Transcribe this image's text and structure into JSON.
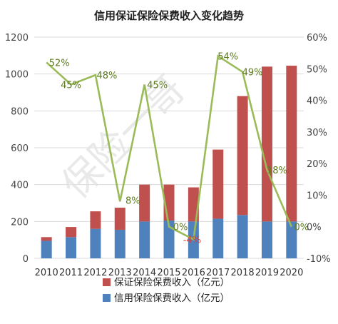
{
  "chart_data": {
    "type": "bar",
    "title": "信用保证保险保费收入变化趋势",
    "categories": [
      "2010",
      "2011",
      "2012",
      "2013",
      "2014",
      "2015",
      "2016",
      "2017",
      "2018",
      "2019",
      "2020"
    ],
    "y_left_range": [
      0,
      1200
    ],
    "y_left_ticks": [
      "0",
      "200",
      "400",
      "600",
      "800",
      "1000",
      "1200"
    ],
    "y_right_range": [
      -10,
      60
    ],
    "y_right_ticks": [
      "-10%",
      "0%",
      "10%",
      "20%",
      "30%",
      "40%",
      "50%",
      "60%"
    ],
    "stacked": true,
    "series": [
      {
        "name": "信用保险保费收入（亿元）",
        "color": "#4f81bd",
        "values": [
          95,
          115,
          160,
          155,
          200,
          205,
          200,
          215,
          235,
          200,
          200
        ]
      },
      {
        "name": "保证保险保费收入（亿元）",
        "color": "#c0504d",
        "values": [
          20,
          55,
          95,
          120,
          200,
          195,
          185,
          375,
          645,
          840,
          845
        ]
      }
    ],
    "line": {
      "color": "#9bbb59",
      "axis": "right",
      "values": [
        52,
        45,
        48,
        8,
        45,
        0,
        -4,
        54,
        49,
        18,
        0
      ],
      "labels": [
        "52%",
        "45%",
        "48%",
        "8%",
        "45%",
        "0%",
        "-4%",
        "54%",
        "49%",
        "18%",
        "0%"
      ],
      "label_color": "#5c7a1e",
      "highlight_label_index": 6,
      "highlight_label_color": "#e03c31"
    },
    "grid": true,
    "legend_position": "bottom",
    "watermark": "保险一哥"
  }
}
